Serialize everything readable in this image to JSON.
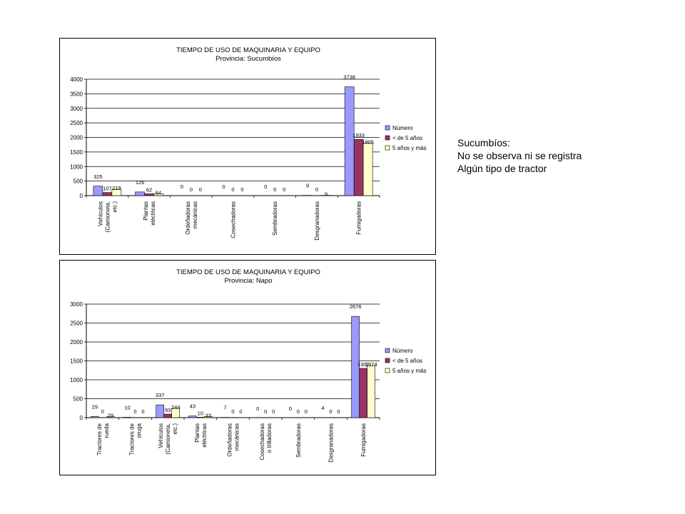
{
  "colors": {
    "numero": "#9999FF",
    "menos5": "#993366",
    "mas5": "#FFFFCC",
    "plot_bg": "#FFFFFF",
    "grid": "#000000"
  },
  "note": {
    "line1": "Sucumbíos:",
    "line2": "No se observa ni se registra",
    "line3": "Algún tipo de tractor"
  },
  "chart_data": [
    {
      "type": "bar",
      "title": "TIEMPO DE USO DE MAQUINARIA Y EQUIPO",
      "subtitle": "Provincia: Sucumbíos",
      "xlabel": "",
      "ylabel": "",
      "ylim": [
        0,
        4000
      ],
      "yticks": [
        0,
        500,
        1000,
        1500,
        2000,
        2500,
        3000,
        3500,
        4000
      ],
      "grid": true,
      "legend_position": "right",
      "categories": [
        [
          "Vehículos",
          "(Camioneta,",
          "etc.)"
        ],
        [
          "Plantas",
          "eléctricas"
        ],
        [
          "Ordeñadoras",
          "mecánicas"
        ],
        [
          "Cosechadoras"
        ],
        [
          "Sembradoras"
        ],
        [
          "Desgranadoras"
        ],
        [
          "Fumigadoras"
        ]
      ],
      "series": [
        {
          "name": "Número",
          "color": "#9999FF",
          "values": [
            325,
            126,
            0,
            0,
            0,
            9,
            3738
          ]
        },
        {
          "name": "< de 5 años",
          "color": "#993366",
          "values": [
            107,
            62,
            0,
            0,
            0,
            0,
            1933
          ]
        },
        {
          "name": "5 años y más",
          "color": "#FFFFCC",
          "values": [
            219,
            64,
            0,
            0,
            0,
            9,
            1805
          ]
        }
      ]
    },
    {
      "type": "bar",
      "title": "TIEMPO DE USO DE MAQUINARIA Y EQUIPO",
      "subtitle": "Provincia: Napo",
      "xlabel": "",
      "ylabel": "",
      "ylim": [
        0,
        3000
      ],
      "yticks": [
        0,
        500,
        1000,
        1500,
        2000,
        2500,
        3000
      ],
      "grid": true,
      "legend_position": "right",
      "categories": [
        [
          "Tractores de",
          "rueda"
        ],
        [
          "Tractores de",
          "oruga"
        ],
        [
          "Vehículos",
          "(Camioneta,",
          "etc.)"
        ],
        [
          "Plantas",
          "eléctricas"
        ],
        [
          "Ordeñadoras",
          "mecánicas"
        ],
        [
          "Cosechadoras",
          "o trilladoras"
        ],
        [
          "Sembradoras"
        ],
        [
          "Desgranadoras"
        ],
        [
          "Fumigadoras"
        ]
      ],
      "series": [
        {
          "name": "Número",
          "color": "#9999FF",
          "values": [
            29,
            10,
            337,
            43,
            7,
            0,
            0,
            4,
            2676
          ]
        },
        {
          "name": "< de 5 años",
          "color": "#993366",
          "values": [
            0,
            0,
            93,
            10,
            0,
            0,
            0,
            0,
            1302
          ]
        },
        {
          "name": "5 años y más",
          "color": "#FFFFCC",
          "values": [
            29,
            0,
            244,
            33,
            0,
            0,
            0,
            0,
            1374
          ]
        }
      ]
    }
  ]
}
